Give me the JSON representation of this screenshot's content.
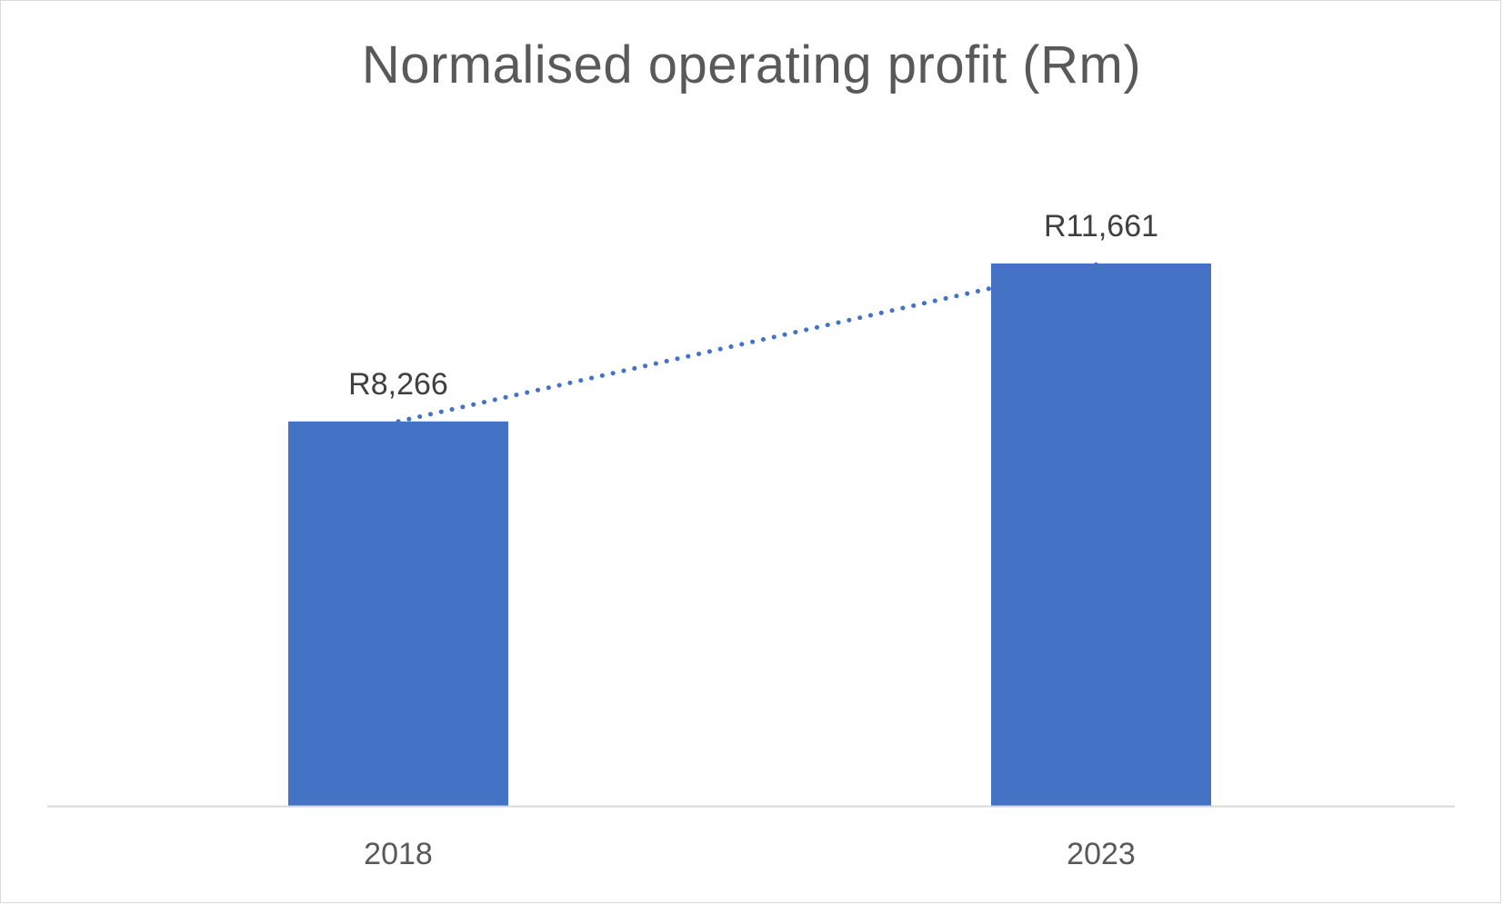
{
  "chart_data": {
    "type": "bar",
    "title": "Normalised operating profit (Rm)",
    "xlabel": "",
    "ylabel": "",
    "categories": [
      "2018",
      "2023"
    ],
    "values": [
      8266,
      11661
    ],
    "data_labels": [
      "R8,266",
      "R11,661"
    ],
    "ylim": [
      0,
      14000
    ],
    "grid": false,
    "legend": "none",
    "trendline": {
      "type": "linear",
      "style": "dotted"
    },
    "colors": {
      "bar": "#4472c4",
      "trendline": "#4472c4",
      "axis": "#d9d9d9"
    }
  }
}
